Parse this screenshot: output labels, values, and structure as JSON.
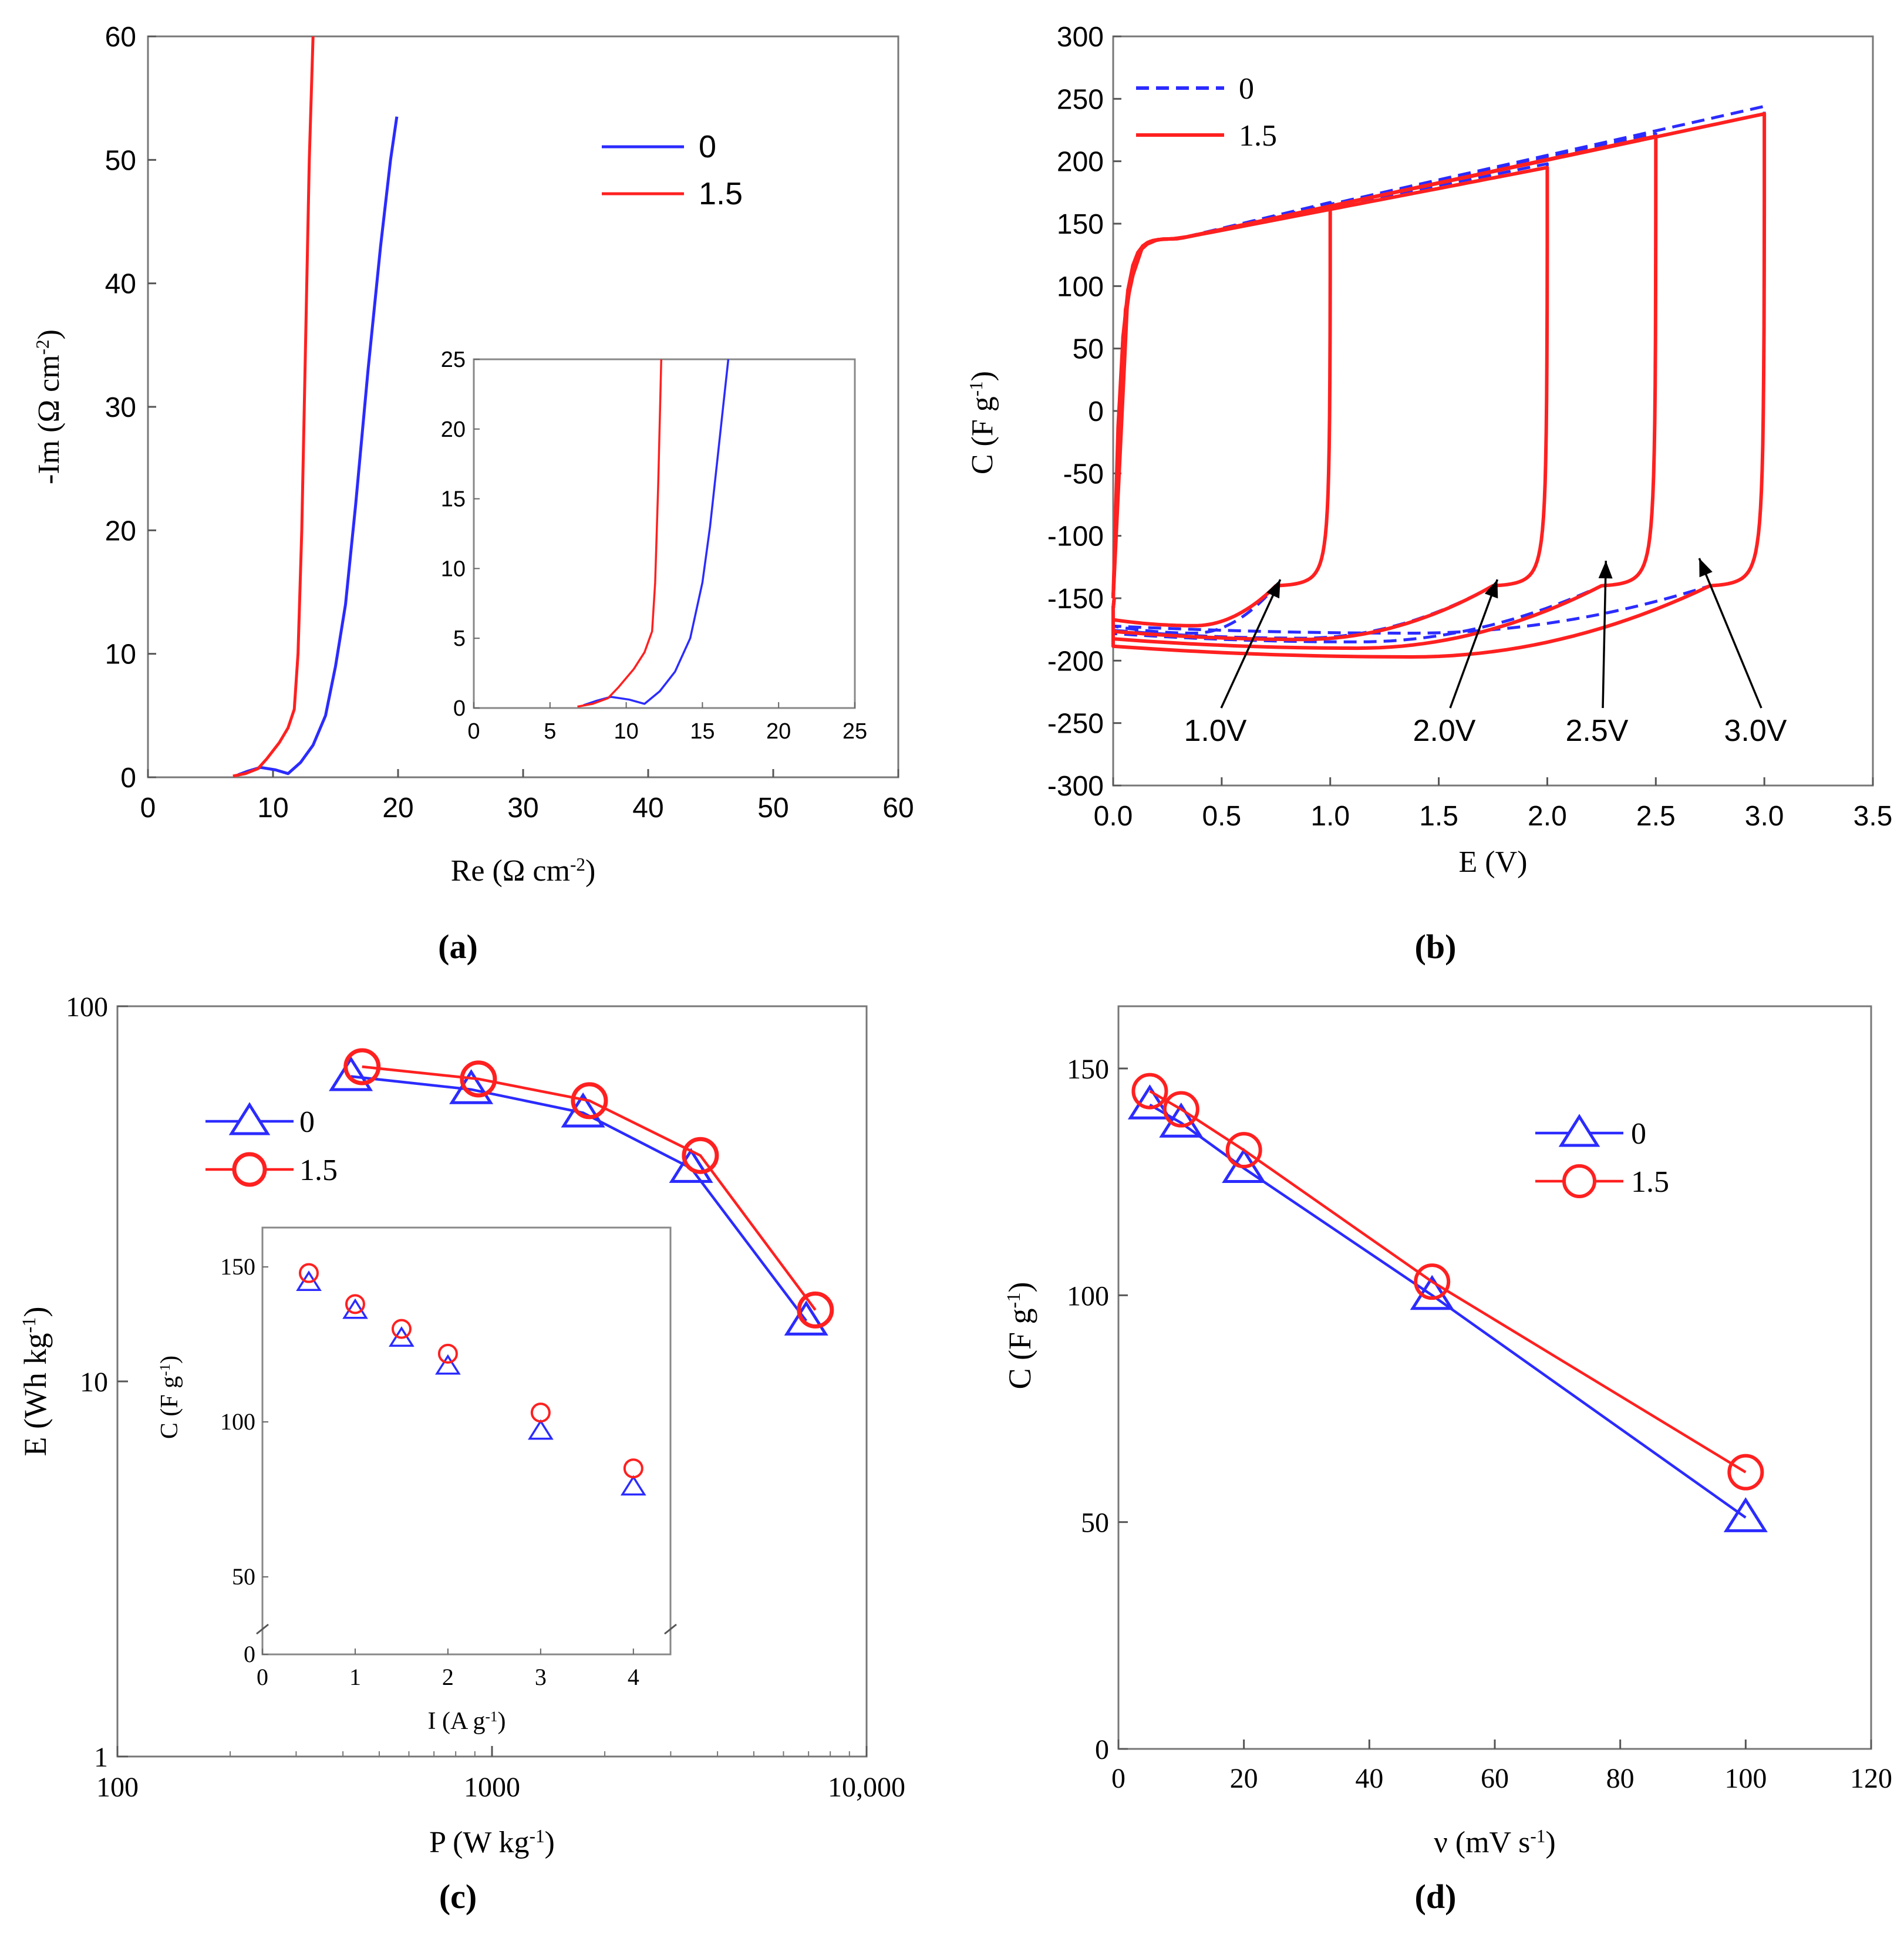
{
  "figure": {
    "panel_labels": [
      "(a)",
      "(b)",
      "(c)",
      "(d)"
    ]
  },
  "chart_data": [
    {
      "panel": "(a)",
      "type": "line",
      "xlabel": "Re (Ω cm",
      "xlabel_sup": "-2",
      "xlabel_end": ")",
      "ylabel": "-Im (Ω cm",
      "ylabel_sup": "-2",
      "ylabel_end": ")",
      "xlim": [
        0,
        60
      ],
      "ylim": [
        0,
        60
      ],
      "xticks": [
        0,
        10,
        20,
        30,
        40,
        50,
        60
      ],
      "yticks": [
        0,
        10,
        20,
        30,
        40,
        50,
        60
      ],
      "legend": [
        "0",
        "1.5"
      ],
      "legend_position": "top-right",
      "series": [
        {
          "name": "0",
          "color": "#2b2bff",
          "x": [
            7.2,
            8.0,
            9.0,
            10.2,
            11.2,
            12.2,
            13.2,
            14.2,
            15.0,
            15.8,
            16.6,
            17.6,
            18.6,
            19.4,
            19.9
          ],
          "y": [
            0.2,
            0.5,
            0.8,
            0.6,
            0.3,
            1.2,
            2.6,
            5.0,
            9.0,
            14.0,
            22.0,
            33.0,
            43.0,
            50.0,
            53.5
          ]
        },
        {
          "name": "1.5",
          "color": "#ff2020",
          "x": [
            6.8,
            7.8,
            8.8,
            9.5,
            10.5,
            11.2,
            11.7,
            12.0,
            12.3,
            12.6,
            12.9,
            13.2
          ],
          "y": [
            0.1,
            0.3,
            0.7,
            1.5,
            2.8,
            4.0,
            5.5,
            10.0,
            20.0,
            35.0,
            50.0,
            60.0
          ]
        }
      ],
      "inset": {
        "xlim": [
          0,
          25
        ],
        "ylim": [
          0,
          25
        ],
        "xticks": [
          0,
          5,
          10,
          15,
          20,
          25
        ],
        "yticks": [
          0,
          5,
          10,
          15,
          20,
          25
        ],
        "series": [
          {
            "name": "0",
            "color": "#2b2bff",
            "x": [
              7.2,
              8.0,
              9.0,
              10.2,
              11.2,
              12.2,
              13.2,
              14.2,
              15.0,
              15.5,
              16.0,
              16.4,
              16.7
            ],
            "y": [
              0.2,
              0.5,
              0.8,
              0.6,
              0.3,
              1.2,
              2.6,
              5.0,
              9.0,
              13.0,
              18.0,
              22.0,
              25.0
            ]
          },
          {
            "name": "1.5",
            "color": "#ff2020",
            "x": [
              6.8,
              7.8,
              8.8,
              9.5,
              10.5,
              11.2,
              11.7,
              11.9,
              12.1,
              12.3
            ],
            "y": [
              0.1,
              0.3,
              0.7,
              1.5,
              2.8,
              4.0,
              5.5,
              9.0,
              16.0,
              25.0
            ]
          }
        ]
      }
    },
    {
      "panel": "(b)",
      "type": "line",
      "xlabel": "E (V)",
      "ylabel": "C (F g",
      "ylabel_sup": "-1",
      "ylabel_end": ")",
      "xlim": [
        0.0,
        3.5
      ],
      "ylim": [
        -300,
        300
      ],
      "xticks": [
        "0.0",
        "0.5",
        "1.0",
        "1.5",
        "2.0",
        "2.5",
        "3.0",
        "3.5"
      ],
      "yticks": [
        "-300",
        "-250",
        "-200",
        "-150",
        "-100",
        "-50",
        "0",
        "50",
        "100",
        "150",
        "200",
        "250",
        "300"
      ],
      "legend": [
        "0",
        "1.5"
      ],
      "legend_position": "top-left",
      "series": [
        {
          "name": "0",
          "style": "dashed",
          "color": "#2b2bff",
          "loops": [
            {
              "vmax": 1.0,
              "top_end": 167,
              "bottom_min": -178
            },
            {
              "vmax": 2.0,
              "top_end": 198,
              "bottom_min": -182
            },
            {
              "vmax": 2.5,
              "top_end": 222,
              "bottom_min": -185
            },
            {
              "vmax": 3.0,
              "top_end": 244,
              "bottom_min": -178
            }
          ]
        },
        {
          "name": "1.5",
          "style": "solid",
          "color": "#ff2020",
          "loops": [
            {
              "vmax": 1.0,
              "top_end": 163,
              "bottom_min": -172
            },
            {
              "vmax": 2.0,
              "top_end": 195,
              "bottom_min": -183
            },
            {
              "vmax": 2.5,
              "top_end": 220,
              "bottom_min": -190
            },
            {
              "vmax": 3.0,
              "top_end": 238,
              "bottom_min": -197
            }
          ]
        }
      ],
      "annotations": [
        {
          "text": "1.0V",
          "arrow_to": [
            0.77,
            -135
          ]
        },
        {
          "text": "2.0V",
          "arrow_to": [
            1.77,
            -135
          ]
        },
        {
          "text": "2.5V",
          "arrow_to": [
            2.27,
            -120
          ]
        },
        {
          "text": "3.0V",
          "arrow_to": [
            2.7,
            -118
          ]
        }
      ]
    },
    {
      "panel": "(c)",
      "type": "line",
      "xscale": "log",
      "yscale": "log",
      "xlabel": "P (W kg",
      "xlabel_sup": "-1",
      "xlabel_end": ")",
      "ylabel": "E (Wh kg",
      "ylabel_sup": "-1",
      "ylabel_end": ")",
      "xlim": [
        100,
        10000
      ],
      "ylim": [
        1,
        100
      ],
      "xticks": [
        "100",
        "1000",
        "10,000"
      ],
      "yticks": [
        "1",
        "10",
        "100"
      ],
      "legend": [
        "0",
        "1.5"
      ],
      "legend_position": "top-left",
      "series": [
        {
          "name": "0",
          "marker": "triangle",
          "color": "#2b2bff",
          "x": [
            420,
            880,
            1750,
            3400,
            6900
          ],
          "y": [
            65,
            60,
            52,
            37,
            14.5
          ]
        },
        {
          "name": "1.5",
          "marker": "circle",
          "color": "#ff2020",
          "x": [
            450,
            920,
            1820,
            3600,
            7300
          ],
          "y": [
            69,
            64,
            56,
            40,
            15.5
          ]
        }
      ],
      "inset": {
        "xlabel": "I (A g",
        "xlabel_sup": "-1",
        "xlabel_end": ")",
        "ylabel": "C (F g",
        "ylabel_sup": "-1",
        "ylabel_end": ")",
        "xlim": [
          0,
          4.4
        ],
        "xticks": [
          "0",
          "1",
          "2",
          "3",
          "4"
        ],
        "yticks": [
          "0",
          "50",
          "100",
          "150"
        ],
        "axis_break": true,
        "series": [
          {
            "name": "0",
            "marker": "triangle",
            "color": "#2b2bff",
            "x": [
              0.5,
              1.0,
              1.5,
              2.0,
              3.0,
              4.0
            ],
            "y": [
              145,
              136,
              127,
              118,
              97,
              79
            ]
          },
          {
            "name": "1.5",
            "marker": "circle",
            "color": "#ff2020",
            "x": [
              0.5,
              1.0,
              1.5,
              2.0,
              3.0,
              4.0
            ],
            "y": [
              148,
              138,
              130,
              122,
              103,
              85
            ]
          }
        ]
      }
    },
    {
      "panel": "(d)",
      "type": "line",
      "xlabel": "ν (mV s",
      "xlabel_sup": "-1",
      "xlabel_end": ")",
      "ylabel": "C (F g",
      "ylabel_sup": "-1",
      "ylabel_end": ")",
      "xlim": [
        0,
        120
      ],
      "ylim": [
        0,
        160
      ],
      "xticks": [
        "0",
        "20",
        "40",
        "60",
        "80",
        "100",
        "120"
      ],
      "yticks": [
        "0",
        "50",
        "100",
        "150"
      ],
      "legend": [
        "0",
        "1.5"
      ],
      "legend_position": "top-right",
      "series": [
        {
          "name": "0",
          "marker": "triangle",
          "color": "#2b2bff",
          "x": [
            5,
            10,
            20,
            50,
            100
          ],
          "y": [
            142,
            138,
            128,
            100,
            51
          ]
        },
        {
          "name": "1.5",
          "marker": "circle",
          "color": "#ff2020",
          "x": [
            5,
            10,
            20,
            50,
            100
          ],
          "y": [
            145,
            141,
            132,
            103,
            61
          ]
        }
      ]
    }
  ]
}
